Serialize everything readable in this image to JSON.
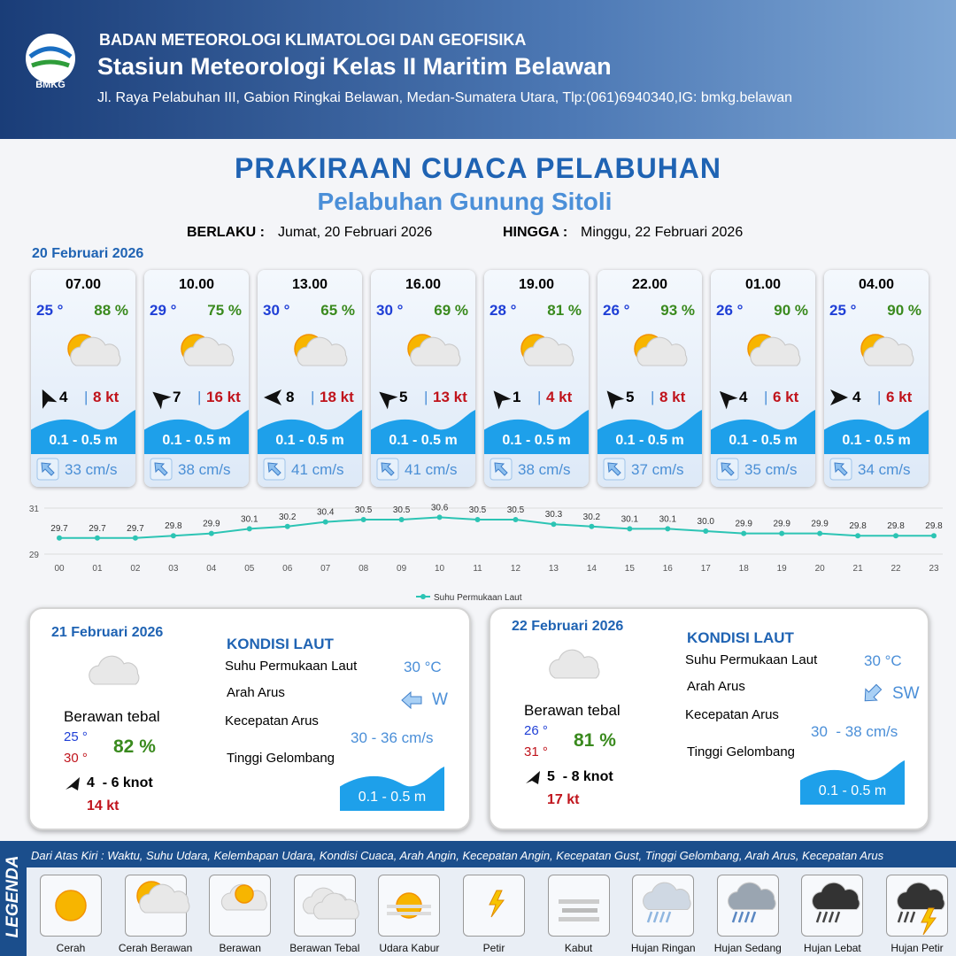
{
  "header": {
    "logo": "BMKG",
    "agency": "BADAN METEOROLOGI KLIMATOLOGI DAN GEOFISIKA",
    "station": "Stasiun Meteorologi Kelas II Maritim Belawan",
    "address": "Jl. Raya Pelabuhan III, Gabion Ringkai Belawan, Medan-Sumatera Utara, Tlp:(061)6940340,IG: bmkg.belawan"
  },
  "title": "PRAKIRAAN CUACA PELABUHAN",
  "subtitle": "Pelabuhan Gunung Sitoli",
  "validity": {
    "from_label": "BERLAKU :",
    "from": "Jumat, 20 Februari 2026",
    "to_label": "HINGGA :",
    "to": "Minggu, 22 Februari 2026"
  },
  "day1": {
    "date": "20 Februari 2026",
    "forecasts": [
      {
        "time": "07.00",
        "temp": "25 °",
        "humidity": "88 %",
        "wind_dir": -25,
        "wind": "4",
        "gust": "8 kt",
        "wave": "0.1 - 0.5 m",
        "current": "33 cm/s"
      },
      {
        "time": "10.00",
        "temp": "29 °",
        "humidity": "75 %",
        "wind_dir": -50,
        "wind": "7",
        "gust": "16 kt",
        "wave": "0.1 - 0.5 m",
        "current": "38 cm/s"
      },
      {
        "time": "13.00",
        "temp": "30 °",
        "humidity": "65 %",
        "wind_dir": -90,
        "wind": "8",
        "gust": "18 kt",
        "wave": "0.1 - 0.5 m",
        "current": "41 cm/s"
      },
      {
        "time": "16.00",
        "temp": "30 °",
        "humidity": "69 %",
        "wind_dir": -50,
        "wind": "5",
        "gust": "13 kt",
        "wave": "0.1 - 0.5 m",
        "current": "41 cm/s"
      },
      {
        "time": "19.00",
        "temp": "28 °",
        "humidity": "81 %",
        "wind_dir": -40,
        "wind": "1",
        "gust": "4 kt",
        "wave": "0.1 - 0.5 m",
        "current": "38 cm/s"
      },
      {
        "time": "22.00",
        "temp": "26 °",
        "humidity": "93 %",
        "wind_dir": -40,
        "wind": "5",
        "gust": "8 kt",
        "wave": "0.1 - 0.5 m",
        "current": "37 cm/s"
      },
      {
        "time": "01.00",
        "temp": "26 °",
        "humidity": "90 %",
        "wind_dir": -45,
        "wind": "4",
        "gust": "6 kt",
        "wave": "0.1 - 0.5 m",
        "current": "35 cm/s"
      },
      {
        "time": "04.00",
        "temp": "25 °",
        "humidity": "90 %",
        "wind_dir": 90,
        "wind": "4",
        "gust": "6 kt",
        "wave": "0.1 - 0.5 m",
        "current": "34 cm/s"
      }
    ]
  },
  "chart_data": {
    "type": "line",
    "categories": [
      "00",
      "01",
      "02",
      "03",
      "04",
      "05",
      "06",
      "07",
      "08",
      "09",
      "10",
      "11",
      "12",
      "13",
      "14",
      "15",
      "16",
      "17",
      "18",
      "19",
      "20",
      "21",
      "22",
      "23"
    ],
    "series": [
      {
        "name": "Suhu Permukaan Laut",
        "color": "#2cc4b4",
        "values": [
          29.7,
          29.7,
          29.7,
          29.8,
          29.9,
          30.1,
          30.2,
          30.4,
          30.5,
          30.5,
          30.6,
          30.5,
          30.5,
          30.3,
          30.2,
          30.1,
          30.1,
          30.0,
          29.9,
          29.9,
          29.9,
          29.8,
          29.8,
          29.8
        ],
        "value_labels": [
          "29.7",
          "29.7",
          "29.7",
          "29.8",
          "29.9",
          "30.1",
          "30.2",
          "30.4",
          "30.5",
          "30.5",
          "30.6",
          "30.5",
          "30.5",
          "30.3",
          "30.2",
          "30.1",
          "30.1",
          "30.0",
          "29.9",
          "29.9",
          "29.9",
          "29.8",
          "29.8",
          "29.8"
        ]
      }
    ],
    "ylim": [
      29,
      31
    ],
    "yticks": [
      29,
      31
    ],
    "grid": true,
    "legend": "bottom"
  },
  "days": [
    {
      "date": "21 Februari 2026",
      "condition": "Berawan tebal",
      "temp_min": "25 °",
      "temp_max": "30 °",
      "humidity": "82 %",
      "wind": "4  - 6 knot",
      "gust": "14 kt",
      "sea_heading": "KONDISI LAUT",
      "sst_label": "Suhu Permukaan Laut",
      "sst": "30 °C",
      "dir_label": "Arah Arus",
      "dir": "W",
      "speed_label": "Kecepatan Arus",
      "speed": "30 - 36 cm/s",
      "wave_label": "Tinggi Gelombang",
      "wave": "0.1 - 0.5 m"
    },
    {
      "date": "22 Februari 2026",
      "condition": "Berawan tebal",
      "temp_min": "26 °",
      "temp_max": "31 °",
      "humidity": "81 %",
      "wind": "5  - 8 knot",
      "gust": "17 kt",
      "sea_heading": "KONDISI LAUT",
      "sst_label": "Suhu Permukaan Laut",
      "sst": "30 °C",
      "dir_label": "Arah Arus",
      "dir": "SW",
      "speed_label": "Kecepatan Arus",
      "speed": "30  - 38 cm/s",
      "wave_label": "Tinggi Gelombang",
      "wave": "0.1 - 0.5 m"
    }
  ],
  "legend": {
    "title": "LEGENDA",
    "description": "Dari Atas Kiri : Waktu, Suhu Udara, Kelembapan Udara, Kondisi Cuaca, Arah Angin, Kecepatan Angin, Kecepatan Gust, Tinggi Gelombang, Arah Arus, Kecepatan Arus",
    "items": [
      "Cerah",
      "Cerah Berawan",
      "Berawan",
      "Berawan Tebal",
      "Udara Kabur",
      "Petir",
      "Kabut",
      "Hujan Ringan",
      "Hujan Sedang",
      "Hujan Lebat",
      "Hujan Petir"
    ]
  }
}
